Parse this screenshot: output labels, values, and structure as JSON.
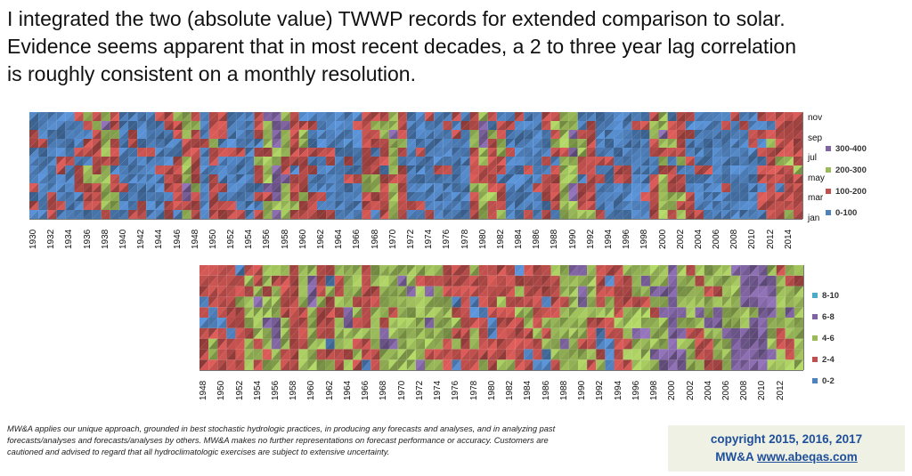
{
  "headline": {
    "line1": "I integrated the two (absolute value) TWWP records for extended comparison to solar.",
    "line2": "Evidence seems apparent that in most recent decades, a 2 to  three year lag correlation",
    "line3": "is roughly consistent on a monthly resolution."
  },
  "chart_data": [
    {
      "type": "heatmap",
      "x": [
        "1930",
        "1932",
        "1934",
        "1936",
        "1938",
        "1940",
        "1942",
        "1944",
        "1946",
        "1948",
        "1950",
        "1952",
        "1954",
        "1956",
        "1958",
        "1960",
        "1962",
        "1964",
        "1966",
        "1968",
        "1970",
        "1972",
        "1974",
        "1976",
        "1978",
        "1980",
        "1982",
        "1984",
        "1986",
        "1988",
        "1990",
        "1992",
        "1994",
        "1996",
        "1998",
        "2000",
        "2002",
        "2004",
        "2006",
        "2008",
        "2010",
        "2012",
        "2014"
      ],
      "y": [
        "jan",
        "mar",
        "may",
        "jul",
        "sep",
        "nov"
      ],
      "legend": [
        "300-400",
        "200-300",
        "100-200",
        "0-100"
      ],
      "legend_colors": [
        "#8064a2",
        "#9bbb59",
        "#c0504d",
        "#4f81bd"
      ],
      "legend_position": "right",
      "intensity_by_year": {
        "1930": 0,
        "1932": 0,
        "1934": 0,
        "1936": 1,
        "1937": 1,
        "1938": 2,
        "1939": 1,
        "1940": 0,
        "1942": 0,
        "1944": 0,
        "1946": 1,
        "1947": 2,
        "1948": 1,
        "1949": 0,
        "1950": 1,
        "1952": 0,
        "1954": 0,
        "1955": 1,
        "1956": 2,
        "1957": 3,
        "1958": 2,
        "1959": 1,
        "1960": 1,
        "1962": 0,
        "1964": 0,
        "1966": 0,
        "1967": 1,
        "1968": 1,
        "1969": 1,
        "1970": 2,
        "1971": 1,
        "1972": 0,
        "1974": 0,
        "1976": 0,
        "1978": 0,
        "1979": 1,
        "1980": 2,
        "1981": 1,
        "1982": 1,
        "1984": 0,
        "1986": 0,
        "1988": 1,
        "1989": 2,
        "1990": 2,
        "1991": 1,
        "1992": 1,
        "1994": 0,
        "1996": 0,
        "1998": 0,
        "1999": 1,
        "2000": 2,
        "2001": 1,
        "2002": 1,
        "2004": 0,
        "2006": 0,
        "2008": 0,
        "2010": 0,
        "2012": 1,
        "2013": 1,
        "2014": 1
      }
    },
    {
      "type": "heatmap",
      "x": [
        "1948",
        "1950",
        "1952",
        "1954",
        "1956",
        "1958",
        "1960",
        "1962",
        "1964",
        "1966",
        "1968",
        "1970",
        "1972",
        "1974",
        "1976",
        "1978",
        "1980",
        "1982",
        "1984",
        "1986",
        "1988",
        "1990",
        "1992",
        "1994",
        "1996",
        "1998",
        "2000",
        "2002",
        "2004",
        "2006",
        "2008",
        "2010",
        "2012"
      ],
      "y": [],
      "legend": [
        "8-10",
        "6-8",
        "4-6",
        "2-4",
        "0-2"
      ],
      "legend_colors": [
        "#4bacc6",
        "#8064a2",
        "#9bbb59",
        "#c0504d",
        "#4f81bd"
      ],
      "legend_position": "right",
      "intensity_by_year": {
        "1948": 1,
        "1950": 1,
        "1952": 1,
        "1954": 2,
        "1956": 2,
        "1958": 1,
        "1960": 2,
        "1962": 1,
        "1964": 2,
        "1966": 1,
        "1968": 2,
        "1970": 2,
        "1972": 2,
        "1974": 2,
        "1976": 1,
        "1978": 1,
        "1980": 1,
        "1982": 1,
        "1984": 1,
        "1986": 1,
        "1988": 2,
        "1990": 2,
        "1992": 1,
        "1994": 1,
        "1996": 2,
        "1998": 2,
        "2000": 3,
        "2002": 2,
        "2004": 2,
        "2006": 2,
        "2008": 3,
        "2010": 3,
        "2012": 2
      }
    }
  ],
  "disclaimer": {
    "line1": "MW&A applies our unique approach, grounded in best stochastic hydrologic practices, in producing any forecasts and analyses, and in analyzing past",
    "line2": "forecasts/analyses and forecasts/analyses by others.  MW&A makes no further representations on forecast performance or accuracy.  Customers are",
    "line3": "cautioned and advised to regard that all hydroclimatologic exercises are subject to extensive uncertainty."
  },
  "copyright": {
    "line1": "copyright 2015, 2016, 2017",
    "prefix": "MW&A ",
    "link": "www.abeqas.com"
  }
}
